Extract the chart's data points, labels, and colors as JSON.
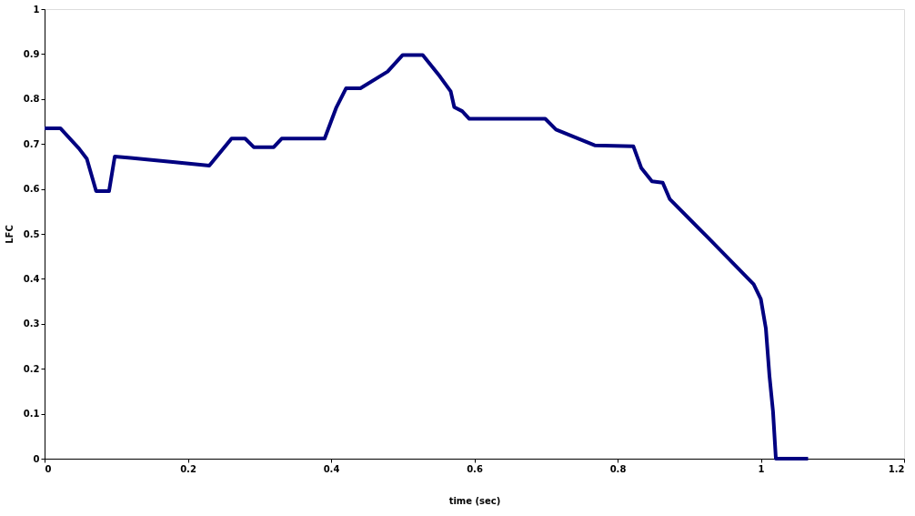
{
  "chart_data": {
    "type": "line",
    "xlabel": "time (sec)",
    "ylabel": "LFC",
    "x": [
      0,
      0.022,
      0.048,
      0.059,
      0.072,
      0.09,
      0.098,
      0.12,
      0.146,
      0.179,
      0.23,
      0.261,
      0.28,
      0.292,
      0.32,
      0.331,
      0.391,
      0.407,
      0.421,
      0.441,
      0.479,
      0.5,
      0.528,
      0.552,
      0.567,
      0.572,
      0.583,
      0.593,
      0.699,
      0.714,
      0.768,
      0.822,
      0.833,
      0.848,
      0.863,
      0.873,
      0.926,
      0.99,
      1.0,
      1.007,
      1.012,
      1.017,
      1.021,
      1.066
    ],
    "series": [
      {
        "color": "#000080",
        "values": [
          0.735,
          0.735,
          0.69,
          0.667,
          0.595,
          0.595,
          0.672,
          0.669,
          0.665,
          0.66,
          0.652,
          0.712,
          0.712,
          0.693,
          0.693,
          0.712,
          0.712,
          0.78,
          0.824,
          0.824,
          0.861,
          0.898,
          0.898,
          0.85,
          0.817,
          0.782,
          0.773,
          0.756,
          0.756,
          0.732,
          0.697,
          0.695,
          0.647,
          0.617,
          0.614,
          0.577,
          0.492,
          0.388,
          0.355,
          0.29,
          0.185,
          0.105,
          0,
          0
        ]
      }
    ],
    "xlim": [
      0,
      1.2
    ],
    "xticks": [
      0,
      0.2,
      0.4,
      0.6,
      0.8,
      1,
      1.2
    ],
    "ylim": [
      0,
      1
    ],
    "yticks": [
      0,
      0.1,
      0.2,
      0.3,
      0.4,
      0.5,
      0.6,
      0.7,
      0.8,
      0.9,
      1
    ],
    "grid": false,
    "legend": false,
    "marker": "none",
    "line_style": "solid"
  }
}
